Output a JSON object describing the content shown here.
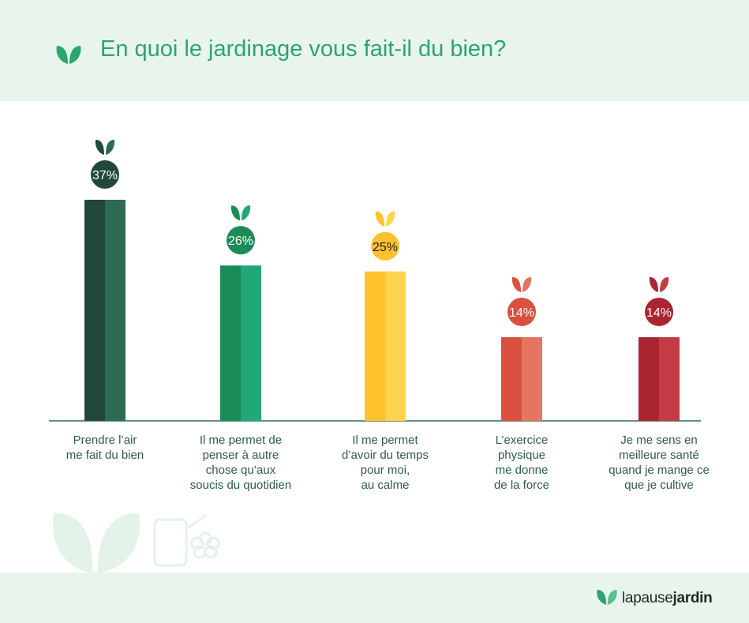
{
  "header": {
    "title": "En quoi le jardinage vous fait-il du bien?"
  },
  "brand": {
    "part1": "la",
    "part2": "pause",
    "part3": "jardin"
  },
  "chart_data": {
    "type": "bar",
    "categories": [
      "Prendre l’air\nme fait du bien",
      "Il me permet de\npenser à autre\nchose qu’aux\nsoucis du quotidien",
      "Il me permet\nd’avoir du temps\npour moi,\nau calme",
      "L’exercice\nphysique\nme donne\nde la force",
      "Je me sens en\nmeilleure santé\nquand je mange ce\nque je cultive"
    ],
    "values": [
      37,
      26,
      25,
      14,
      14
    ],
    "value_labels": [
      "37%",
      "26%",
      "25%",
      "14%",
      "14%"
    ],
    "unit": "%",
    "colors": [
      {
        "dark": "#22483a",
        "light": "#2e6b52",
        "text": "#ffffff"
      },
      {
        "dark": "#1b8c57",
        "light": "#22a876",
        "text": "#ffffff"
      },
      {
        "dark": "#ffc12e",
        "light": "#ffd34d",
        "text": "#222222"
      },
      {
        "dark": "#d9503f",
        "light": "#e57460",
        "text": "#ffffff"
      },
      {
        "dark": "#aa252f",
        "light": "#c43b44",
        "text": "#ffffff"
      }
    ],
    "baseline_color": "#2f6b55",
    "icon": "leaf-icon"
  }
}
